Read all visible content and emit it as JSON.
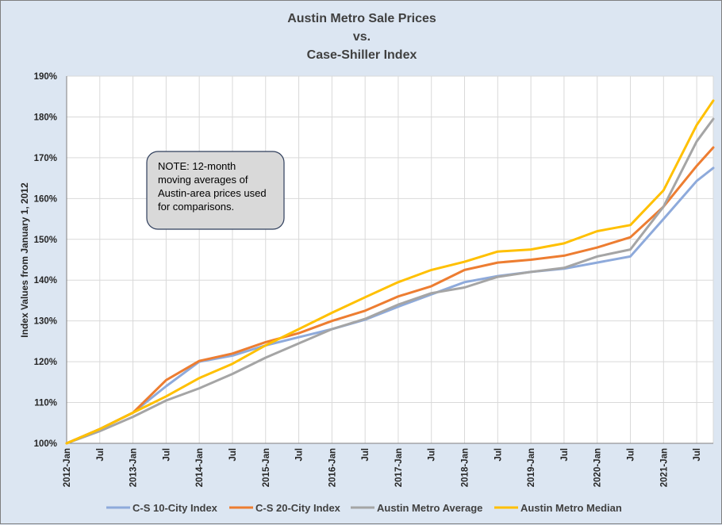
{
  "chart_data": {
    "type": "line",
    "title_lines": [
      "Austin Metro Sale Prices",
      "vs.",
      "Case-Shiller Index"
    ],
    "ylabel": "Index Values from January 1, 2012",
    "xlabel": "",
    "ylim": [
      100,
      190
    ],
    "yticks": [
      "100%",
      "110%",
      "120%",
      "130%",
      "140%",
      "150%",
      "160%",
      "170%",
      "180%",
      "190%"
    ],
    "xticks": [
      "2012-Jan",
      "Jul",
      "2013-Jan",
      "Jul",
      "2014-Jan",
      "Jul",
      "2015-Jan",
      "Jul",
      "2016-Jan",
      "Jul",
      "2017-Jan",
      "Jul",
      "2018-Jan",
      "Jul",
      "2019-Jan",
      "Jul",
      "2020-Jan",
      "Jul",
      "2021-Jan",
      "Jul"
    ],
    "month_count": 117,
    "grid": true,
    "legend_position": "bottom",
    "note_lines": [
      "NOTE:  12-month",
      "moving averages of",
      "Austin-area prices used",
      "for comparisons."
    ],
    "series": [
      {
        "name": "C-S 10-City Index",
        "color": "#8eaadb",
        "points": [
          [
            0,
            100
          ],
          [
            6,
            103.5
          ],
          [
            12,
            107.5
          ],
          [
            18,
            114
          ],
          [
            24,
            120
          ],
          [
            30,
            121.5
          ],
          [
            36,
            124
          ],
          [
            42,
            126
          ],
          [
            48,
            128
          ],
          [
            54,
            130.3
          ],
          [
            60,
            133.5
          ],
          [
            66,
            136.5
          ],
          [
            72,
            139.5
          ],
          [
            78,
            141
          ],
          [
            84,
            142
          ],
          [
            90,
            142.8
          ],
          [
            96,
            144.3
          ],
          [
            102,
            145.8
          ],
          [
            108,
            155
          ],
          [
            114,
            164.3
          ],
          [
            117,
            167.5
          ]
        ]
      },
      {
        "name": "C-S 20-City Index",
        "color": "#ed7d31",
        "points": [
          [
            0,
            100
          ],
          [
            6,
            103.5
          ],
          [
            12,
            107.5
          ],
          [
            18,
            115.5
          ],
          [
            24,
            120.2
          ],
          [
            30,
            122
          ],
          [
            36,
            124.8
          ],
          [
            42,
            127
          ],
          [
            48,
            130
          ],
          [
            54,
            132.5
          ],
          [
            60,
            136
          ],
          [
            66,
            138.5
          ],
          [
            72,
            142.5
          ],
          [
            78,
            144.3
          ],
          [
            84,
            145
          ],
          [
            90,
            146
          ],
          [
            96,
            148
          ],
          [
            102,
            150.5
          ],
          [
            108,
            158
          ],
          [
            114,
            168
          ],
          [
            117,
            172.5
          ]
        ]
      },
      {
        "name": "Austin Metro Average",
        "color": "#a5a5a5",
        "points": [
          [
            0,
            100
          ],
          [
            6,
            103
          ],
          [
            12,
            106.5
          ],
          [
            18,
            110.5
          ],
          [
            24,
            113.5
          ],
          [
            30,
            117
          ],
          [
            36,
            121
          ],
          [
            42,
            124.5
          ],
          [
            48,
            128
          ],
          [
            54,
            130.5
          ],
          [
            60,
            134
          ],
          [
            66,
            136.8
          ],
          [
            72,
            138.2
          ],
          [
            78,
            140.8
          ],
          [
            84,
            142
          ],
          [
            90,
            143
          ],
          [
            96,
            145.8
          ],
          [
            102,
            147.5
          ],
          [
            108,
            158
          ],
          [
            114,
            174
          ],
          [
            117,
            179.5
          ]
        ]
      },
      {
        "name": "Austin Metro Median",
        "color": "#ffc000",
        "points": [
          [
            0,
            100
          ],
          [
            6,
            103.5
          ],
          [
            12,
            107.5
          ],
          [
            18,
            111.5
          ],
          [
            24,
            116
          ],
          [
            30,
            119.5
          ],
          [
            36,
            124
          ],
          [
            42,
            128
          ],
          [
            48,
            132
          ],
          [
            54,
            135.8
          ],
          [
            60,
            139.5
          ],
          [
            66,
            142.5
          ],
          [
            72,
            144.5
          ],
          [
            78,
            147
          ],
          [
            84,
            147.5
          ],
          [
            90,
            149
          ],
          [
            96,
            152
          ],
          [
            102,
            153.5
          ],
          [
            108,
            162
          ],
          [
            114,
            178
          ],
          [
            117,
            184
          ]
        ]
      }
    ]
  }
}
